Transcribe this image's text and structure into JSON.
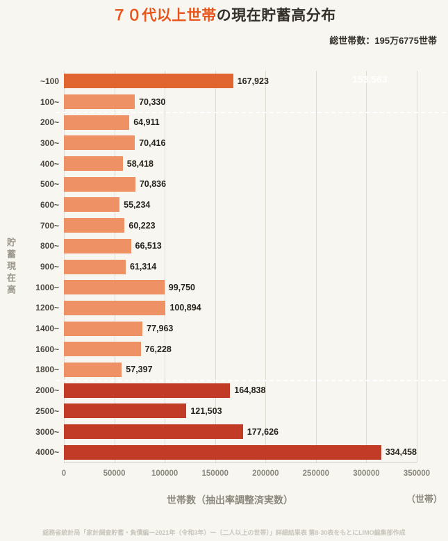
{
  "title": {
    "highlight": "７０代以上世帯",
    "rest": "の現在貯蓄高分布"
  },
  "subtitle": "総世帯数：195万6775世帯",
  "axis": {
    "ylabel": "貯蓄現在高",
    "xlabel": "世帯数（抽出率調整済実数）",
    "x_unit": "（世帯）"
  },
  "footer": "総務省統計局「家計調査貯蓄・負債編ー2021年（令和3年）ー〔二人以上の世帯〕」詳細結果表 第8-30表をもとにLIMO編集部作成",
  "colors": {
    "background": "#f8f6f0",
    "title_highlight": "#e8541a",
    "bar_first": "#e06531",
    "bar_mid": "#ee9164",
    "bar_dark": "#c23b27",
    "gridline": "#dedbd1",
    "separator": "#ffffff",
    "annotation_text": "#ffffff"
  },
  "chart_data": {
    "type": "bar",
    "orientation": "horizontal",
    "title": "７０代以上世帯の現在貯蓄高分布",
    "categories": [
      "~100",
      "100~",
      "200~",
      "300~",
      "400~",
      "500~",
      "600~",
      "700~",
      "800~",
      "900~",
      "1000~",
      "1200~",
      "1400~",
      "1600~",
      "1800~",
      "2000~",
      "2500~",
      "3000~",
      "4000~"
    ],
    "values": [
      167923,
      70330,
      64911,
      70416,
      58418,
      70836,
      55234,
      60223,
      66513,
      61314,
      99750,
      100894,
      77963,
      76228,
      57397,
      164838,
      121503,
      177626,
      334458
    ],
    "bar_groups": [
      "first",
      "mid",
      "mid",
      "mid",
      "mid",
      "mid",
      "mid",
      "mid",
      "mid",
      "mid",
      "mid",
      "mid",
      "mid",
      "mid",
      "mid",
      "dark",
      "dark",
      "dark",
      "dark"
    ],
    "xlim": [
      0,
      350000
    ],
    "xticks": [
      0,
      50000,
      100000,
      150000,
      200000,
      250000,
      300000,
      350000
    ],
    "separators_after_index": [
      1,
      14
    ],
    "annotation": "153,563",
    "xlabel": "世帯数（抽出率調整済実数）",
    "ylabel": "貯蓄現在高",
    "legend": "none",
    "grid": "vertical"
  }
}
